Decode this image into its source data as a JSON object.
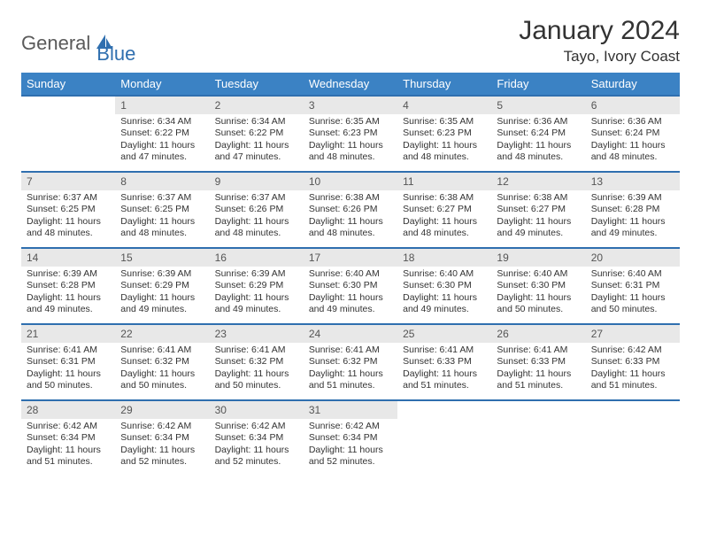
{
  "brand": {
    "part1": "General",
    "part2": "Blue"
  },
  "title": "January 2024",
  "subtitle": "Tayo, Ivory Coast",
  "colors": {
    "header_bg": "#3b82c4",
    "header_text": "#ffffff",
    "row_border": "#2f6faf",
    "daynum_bg": "#e8e8e8",
    "text": "#333333",
    "brand_gray": "#5a5a5a",
    "brand_blue": "#2f6faf"
  },
  "weekdays": [
    "Sunday",
    "Monday",
    "Tuesday",
    "Wednesday",
    "Thursday",
    "Friday",
    "Saturday"
  ],
  "first_weekday_index": 1,
  "days": [
    {
      "n": 1,
      "sunrise": "6:34 AM",
      "sunset": "6:22 PM",
      "daylight": "11 hours and 47 minutes."
    },
    {
      "n": 2,
      "sunrise": "6:34 AM",
      "sunset": "6:22 PM",
      "daylight": "11 hours and 47 minutes."
    },
    {
      "n": 3,
      "sunrise": "6:35 AM",
      "sunset": "6:23 PM",
      "daylight": "11 hours and 48 minutes."
    },
    {
      "n": 4,
      "sunrise": "6:35 AM",
      "sunset": "6:23 PM",
      "daylight": "11 hours and 48 minutes."
    },
    {
      "n": 5,
      "sunrise": "6:36 AM",
      "sunset": "6:24 PM",
      "daylight": "11 hours and 48 minutes."
    },
    {
      "n": 6,
      "sunrise": "6:36 AM",
      "sunset": "6:24 PM",
      "daylight": "11 hours and 48 minutes."
    },
    {
      "n": 7,
      "sunrise": "6:37 AM",
      "sunset": "6:25 PM",
      "daylight": "11 hours and 48 minutes."
    },
    {
      "n": 8,
      "sunrise": "6:37 AM",
      "sunset": "6:25 PM",
      "daylight": "11 hours and 48 minutes."
    },
    {
      "n": 9,
      "sunrise": "6:37 AM",
      "sunset": "6:26 PM",
      "daylight": "11 hours and 48 minutes."
    },
    {
      "n": 10,
      "sunrise": "6:38 AM",
      "sunset": "6:26 PM",
      "daylight": "11 hours and 48 minutes."
    },
    {
      "n": 11,
      "sunrise": "6:38 AM",
      "sunset": "6:27 PM",
      "daylight": "11 hours and 48 minutes."
    },
    {
      "n": 12,
      "sunrise": "6:38 AM",
      "sunset": "6:27 PM",
      "daylight": "11 hours and 49 minutes."
    },
    {
      "n": 13,
      "sunrise": "6:39 AM",
      "sunset": "6:28 PM",
      "daylight": "11 hours and 49 minutes."
    },
    {
      "n": 14,
      "sunrise": "6:39 AM",
      "sunset": "6:28 PM",
      "daylight": "11 hours and 49 minutes."
    },
    {
      "n": 15,
      "sunrise": "6:39 AM",
      "sunset": "6:29 PM",
      "daylight": "11 hours and 49 minutes."
    },
    {
      "n": 16,
      "sunrise": "6:39 AM",
      "sunset": "6:29 PM",
      "daylight": "11 hours and 49 minutes."
    },
    {
      "n": 17,
      "sunrise": "6:40 AM",
      "sunset": "6:30 PM",
      "daylight": "11 hours and 49 minutes."
    },
    {
      "n": 18,
      "sunrise": "6:40 AM",
      "sunset": "6:30 PM",
      "daylight": "11 hours and 49 minutes."
    },
    {
      "n": 19,
      "sunrise": "6:40 AM",
      "sunset": "6:30 PM",
      "daylight": "11 hours and 50 minutes."
    },
    {
      "n": 20,
      "sunrise": "6:40 AM",
      "sunset": "6:31 PM",
      "daylight": "11 hours and 50 minutes."
    },
    {
      "n": 21,
      "sunrise": "6:41 AM",
      "sunset": "6:31 PM",
      "daylight": "11 hours and 50 minutes."
    },
    {
      "n": 22,
      "sunrise": "6:41 AM",
      "sunset": "6:32 PM",
      "daylight": "11 hours and 50 minutes."
    },
    {
      "n": 23,
      "sunrise": "6:41 AM",
      "sunset": "6:32 PM",
      "daylight": "11 hours and 50 minutes."
    },
    {
      "n": 24,
      "sunrise": "6:41 AM",
      "sunset": "6:32 PM",
      "daylight": "11 hours and 51 minutes."
    },
    {
      "n": 25,
      "sunrise": "6:41 AM",
      "sunset": "6:33 PM",
      "daylight": "11 hours and 51 minutes."
    },
    {
      "n": 26,
      "sunrise": "6:41 AM",
      "sunset": "6:33 PM",
      "daylight": "11 hours and 51 minutes."
    },
    {
      "n": 27,
      "sunrise": "6:42 AM",
      "sunset": "6:33 PM",
      "daylight": "11 hours and 51 minutes."
    },
    {
      "n": 28,
      "sunrise": "6:42 AM",
      "sunset": "6:34 PM",
      "daylight": "11 hours and 51 minutes."
    },
    {
      "n": 29,
      "sunrise": "6:42 AM",
      "sunset": "6:34 PM",
      "daylight": "11 hours and 52 minutes."
    },
    {
      "n": 30,
      "sunrise": "6:42 AM",
      "sunset": "6:34 PM",
      "daylight": "11 hours and 52 minutes."
    },
    {
      "n": 31,
      "sunrise": "6:42 AM",
      "sunset": "6:34 PM",
      "daylight": "11 hours and 52 minutes."
    }
  ],
  "labels": {
    "sunrise": "Sunrise:",
    "sunset": "Sunset:",
    "daylight": "Daylight:"
  }
}
